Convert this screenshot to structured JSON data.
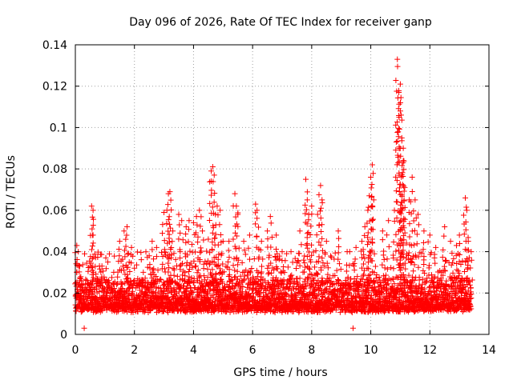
{
  "chart_data": {
    "type": "scatter",
    "title": "Day 096 of 2026, Rate Of TEC Index for receiver ganp",
    "xlabel": "GPS time / hours",
    "ylabel": "ROTI / TECUs",
    "xlim": [
      0,
      14
    ],
    "ylim": [
      0,
      0.14
    ],
    "xticks": [
      "0",
      "2",
      "4",
      "6",
      "8",
      "10",
      "12",
      "14"
    ],
    "yticks": [
      "0",
      "0.02",
      "0.04",
      "0.06",
      "0.08",
      "0.1",
      "0.12",
      "0.14"
    ],
    "grid": true,
    "marker": "+",
    "color": "#ff0000",
    "data_extent_hours": [
      0,
      13.4
    ],
    "baseline_range": [
      0.008,
      0.025
    ],
    "series": [
      {
        "name": "ROTI",
        "points": [
          [
            0.05,
            0.043
          ],
          [
            0.1,
            0.04
          ],
          [
            0.15,
            0.033
          ],
          [
            0.3,
            0.003
          ],
          [
            0.55,
            0.062
          ],
          [
            0.6,
            0.06
          ],
          [
            0.6,
            0.048
          ],
          [
            0.9,
            0.033
          ],
          [
            1.1,
            0.035
          ],
          [
            1.3,
            0.03
          ],
          [
            1.5,
            0.045
          ],
          [
            1.65,
            0.05
          ],
          [
            1.75,
            0.052
          ],
          [
            1.9,
            0.042
          ],
          [
            2.0,
            0.032
          ],
          [
            2.3,
            0.03
          ],
          [
            2.5,
            0.038
          ],
          [
            2.6,
            0.045
          ],
          [
            2.75,
            0.042
          ],
          [
            3.0,
            0.059
          ],
          [
            3.1,
            0.06
          ],
          [
            3.15,
            0.068
          ],
          [
            3.2,
            0.069
          ],
          [
            3.3,
            0.05
          ],
          [
            3.5,
            0.058
          ],
          [
            3.6,
            0.055
          ],
          [
            3.75,
            0.052
          ],
          [
            3.85,
            0.055
          ],
          [
            4.0,
            0.054
          ],
          [
            4.1,
            0.057
          ],
          [
            4.2,
            0.06
          ],
          [
            4.3,
            0.05
          ],
          [
            4.5,
            0.046
          ],
          [
            4.6,
            0.079
          ],
          [
            4.65,
            0.081
          ],
          [
            4.7,
            0.077
          ],
          [
            4.8,
            0.062
          ],
          [
            4.9,
            0.06
          ],
          [
            5.0,
            0.045
          ],
          [
            5.2,
            0.045
          ],
          [
            5.4,
            0.068
          ],
          [
            5.45,
            0.062
          ],
          [
            5.5,
            0.058
          ],
          [
            5.7,
            0.045
          ],
          [
            5.9,
            0.048
          ],
          [
            6.1,
            0.063
          ],
          [
            6.15,
            0.06
          ],
          [
            6.3,
            0.045
          ],
          [
            6.5,
            0.05
          ],
          [
            6.6,
            0.057
          ],
          [
            6.8,
            0.048
          ],
          [
            7.0,
            0.04
          ],
          [
            7.3,
            0.04
          ],
          [
            7.6,
            0.05
          ],
          [
            7.8,
            0.075
          ],
          [
            7.85,
            0.065
          ],
          [
            7.9,
            0.058
          ],
          [
            8.0,
            0.062
          ],
          [
            8.2,
            0.058
          ],
          [
            8.3,
            0.072
          ],
          [
            8.35,
            0.065
          ],
          [
            8.5,
            0.045
          ],
          [
            8.9,
            0.05
          ],
          [
            9.2,
            0.04
          ],
          [
            9.4,
            0.003
          ],
          [
            9.5,
            0.042
          ],
          [
            9.7,
            0.045
          ],
          [
            9.8,
            0.052
          ],
          [
            9.9,
            0.06
          ],
          [
            9.95,
            0.067
          ],
          [
            10.0,
            0.076
          ],
          [
            10.05,
            0.082
          ],
          [
            10.1,
            0.065
          ],
          [
            10.4,
            0.05
          ],
          [
            10.6,
            0.055
          ],
          [
            10.8,
            0.06
          ],
          [
            10.9,
            0.133
          ],
          [
            10.95,
            0.117
          ],
          [
            11.0,
            0.121
          ],
          [
            11.0,
            0.108
          ],
          [
            11.05,
            0.095
          ],
          [
            11.1,
            0.09
          ],
          [
            11.1,
            0.084
          ],
          [
            11.15,
            0.071
          ],
          [
            11.3,
            0.065
          ],
          [
            11.4,
            0.076
          ],
          [
            11.5,
            0.065
          ],
          [
            11.6,
            0.058
          ],
          [
            11.8,
            0.05
          ],
          [
            12.0,
            0.048
          ],
          [
            12.2,
            0.042
          ],
          [
            12.5,
            0.052
          ],
          [
            12.7,
            0.045
          ],
          [
            12.9,
            0.043
          ],
          [
            13.0,
            0.048
          ],
          [
            13.2,
            0.066
          ],
          [
            13.25,
            0.06
          ],
          [
            13.3,
            0.045
          ],
          [
            13.4,
            0.04
          ]
        ]
      }
    ]
  }
}
